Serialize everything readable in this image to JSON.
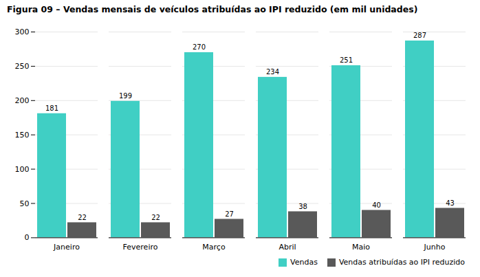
{
  "chart_data": {
    "type": "bar",
    "title": "Figura 09 – Vendas mensais de veículos atribuídas ao IPI reduzido (em mil unidades)",
    "categories": [
      "Janeiro",
      "Fevereiro",
      "Março",
      "Abril",
      "Maio",
      "Junho"
    ],
    "series": [
      {
        "name": "Vendas",
        "color": "#40cfc4",
        "values": [
          181,
          199,
          270,
          234,
          251,
          287
        ]
      },
      {
        "name": "Vendas atribuídas ao IPI reduzido",
        "color": "#595959",
        "values": [
          22,
          22,
          27,
          38,
          40,
          43
        ]
      }
    ],
    "ylim": [
      0,
      300
    ],
    "yticks": [
      0,
      50,
      100,
      150,
      200,
      250,
      300
    ],
    "grid": true,
    "data_labels": true,
    "legend": "lower right"
  }
}
